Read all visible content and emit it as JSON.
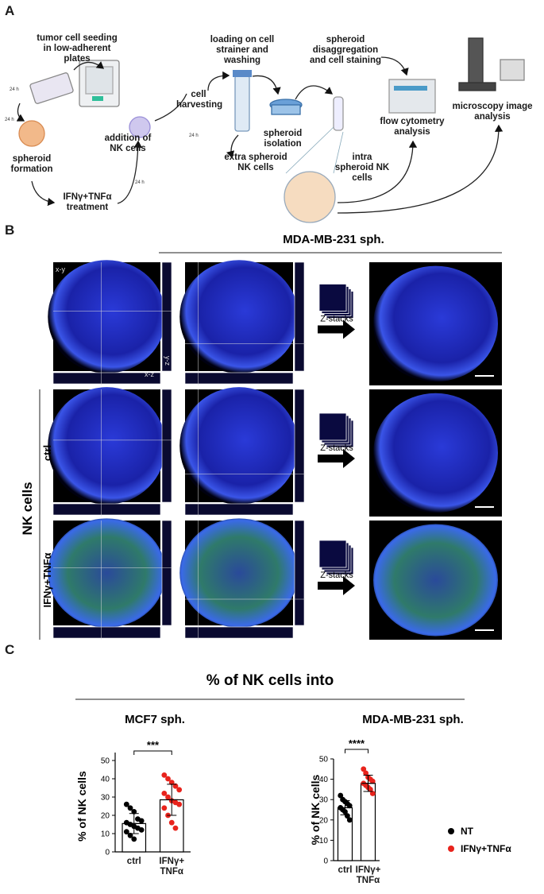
{
  "figure": {
    "panel_labels": [
      "A",
      "B",
      "C"
    ],
    "workflow": {
      "steps": [
        "tumor cell seeding in low-adherent plates",
        "spheroid formation",
        "IFNγ+TNFα treatment",
        "addition of NK cells",
        "cell harvesting",
        "loading on cell strainer and washing",
        "spheroid isolation",
        "extra spheroid NK cells",
        "spheroid disaggregation and cell staining",
        "intra spheroid NK cells",
        "flow cytometry analysis",
        "microscopy image analysis"
      ],
      "timers": [
        "24 h",
        "24 h",
        "24 h",
        "24 h"
      ]
    },
    "imaging": {
      "title": "MDA-MB-231 sph.",
      "group_label": "NK cells",
      "rows": [
        "ctrl",
        "IFNγ+TNFα"
      ],
      "view_labels": [
        "x-y",
        "y-z",
        "x-z"
      ],
      "zstacks": [
        "Z-stacks",
        "Z-stacks",
        "Z-stacks"
      ]
    },
    "quant_title": "% of NK cells into"
  },
  "chart_data": [
    {
      "type": "bar",
      "title": "MCF7 sph.",
      "ylabel": "% of NK cells",
      "categories": [
        "ctrl",
        "IFNγ+ TNFα"
      ],
      "colors": [
        "#000000",
        "#e8231c"
      ],
      "values": [
        15.5,
        28.5
      ],
      "errors": [
        5.5,
        8.5
      ],
      "points": [
        [
          26,
          24,
          22,
          18,
          17,
          16,
          15,
          14,
          13,
          12,
          11,
          9,
          7
        ],
        [
          42,
          40,
          38,
          36,
          34,
          32,
          30,
          28,
          27,
          26,
          24,
          20,
          16,
          13
        ]
      ],
      "significance": "***",
      "ylim": [
        0,
        50
      ],
      "yticks": [
        0,
        10,
        20,
        30,
        40,
        50
      ]
    },
    {
      "type": "bar",
      "title": "MDA-MB-231 sph.",
      "ylabel": "% of NK cells",
      "categories": [
        "ctrl",
        "IFNγ+ TNFα"
      ],
      "colors": [
        "#000000",
        "#e8231c"
      ],
      "values": [
        26,
        38
      ],
      "errors": [
        3.5,
        4
      ],
      "points": [
        [
          32,
          30,
          29,
          28,
          27,
          26,
          25,
          24,
          22,
          20
        ],
        [
          45,
          43,
          41,
          40,
          39,
          38,
          37,
          36,
          35,
          33
        ]
      ],
      "significance": "****",
      "legend": [
        "NT",
        "IFNγ+TNFα"
      ],
      "ylim": [
        0,
        50
      ],
      "yticks": [
        0,
        10,
        20,
        30,
        40,
        50
      ]
    }
  ]
}
